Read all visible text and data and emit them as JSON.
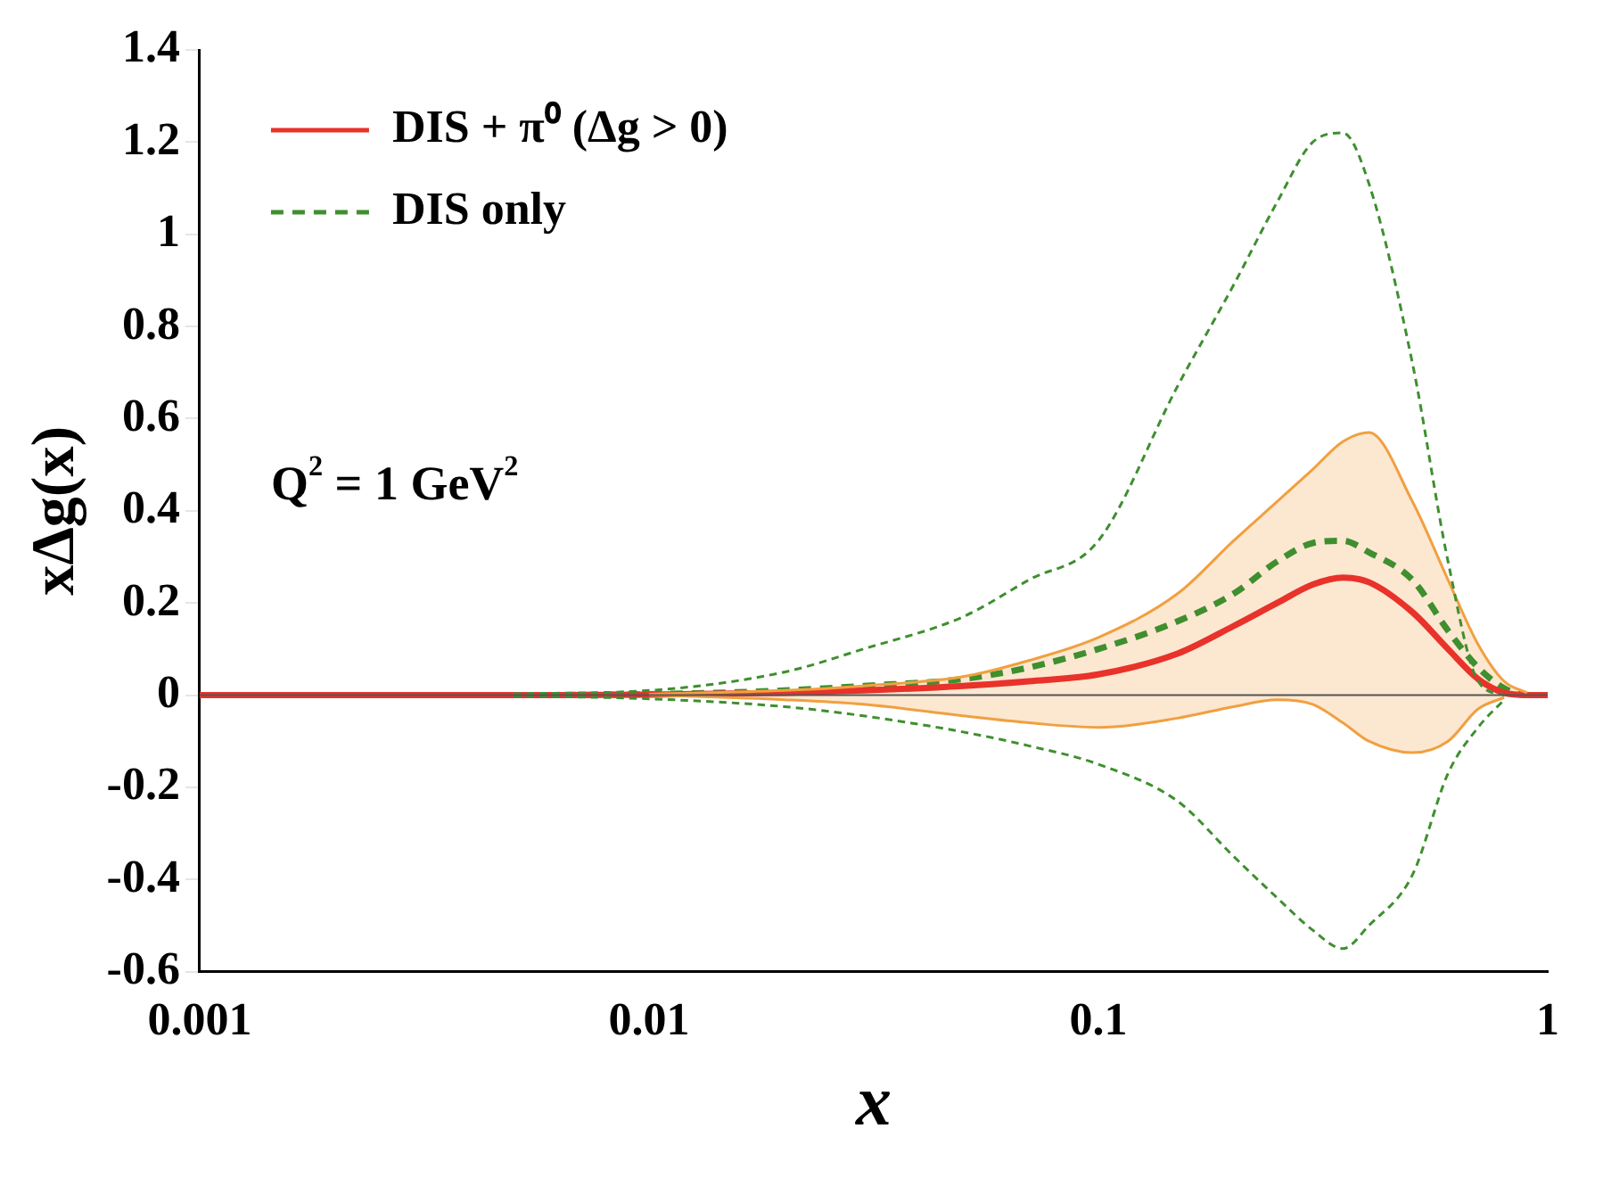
{
  "chart_data": {
    "type": "line",
    "xlabel": "x",
    "ylabel": "xΔg(x)",
    "annotations": [
      "Q$^{2}$ = 1 GeV$^{2}$"
    ],
    "x": [
      0.001,
      0.002,
      0.005,
      0.01,
      0.02,
      0.03,
      0.05,
      0.07,
      0.1,
      0.15,
      0.2,
      0.25,
      0.3,
      0.35,
      0.4,
      0.5,
      0.6,
      0.7,
      0.8,
      0.9,
      1
    ],
    "series": [
      {
        "name": "DIS + π⁰ (Δg > 0)",
        "color": "#e8322a",
        "line_style": "solid",
        "values": [
          0,
          0,
          0,
          0.001,
          0.005,
          0.01,
          0.02,
          0.03,
          0.045,
          0.09,
          0.15,
          0.2,
          0.24,
          0.255,
          0.245,
          0.18,
          0.1,
          0.035,
          0.005,
          0,
          0
        ],
        "upper": [
          0,
          0,
          0,
          0.002,
          0.01,
          0.02,
          0.04,
          0.075,
          0.125,
          0.22,
          0.335,
          0.42,
          0.49,
          0.55,
          0.57,
          0.42,
          0.25,
          0.11,
          0.03,
          0.005,
          0
        ],
        "lower": [
          0,
          0,
          0,
          0,
          -0.01,
          -0.02,
          -0.045,
          -0.06,
          -0.07,
          -0.05,
          -0.025,
          -0.01,
          -0.02,
          -0.06,
          -0.1,
          -0.125,
          -0.1,
          -0.03,
          -0.005,
          0,
          0
        ]
      },
      {
        "name": "DIS only",
        "color": "#3f8f2f",
        "line_style": "dashed",
        "values": [
          0,
          0,
          0,
          0.002,
          0.01,
          0.02,
          0.035,
          0.06,
          0.1,
          0.16,
          0.22,
          0.29,
          0.33,
          0.335,
          0.31,
          0.25,
          0.14,
          0.06,
          0.015,
          0,
          0
        ]
      },
      {
        "color": "#3f8f2f",
        "line_style": "dashed",
        "values": [
          null,
          null,
          0.003,
          0.01,
          0.05,
          0.1,
          0.17,
          0.25,
          0.335,
          0.67,
          0.89,
          1.07,
          1.2,
          1.22,
          1.11,
          0.72,
          0.29,
          0.03,
          0,
          null,
          null
        ]
      },
      {
        "color": "#3f8f2f",
        "line_style": "dashed",
        "values": [
          null,
          null,
          -0.002,
          -0.008,
          -0.025,
          -0.045,
          -0.08,
          -0.11,
          -0.15,
          -0.23,
          -0.35,
          -0.44,
          -0.51,
          -0.55,
          -0.5,
          -0.39,
          -0.17,
          -0.07,
          -0.01,
          null,
          null
        ]
      },
      {
        "color": "#f0a040",
        "line_style": "solid",
        "values": [
          null,
          null,
          null,
          0.002,
          0.01,
          0.02,
          0.04,
          0.075,
          0.125,
          0.22,
          0.335,
          0.42,
          0.49,
          0.55,
          0.57,
          0.42,
          0.25,
          0.11,
          0.03,
          0.005,
          null
        ]
      },
      {
        "color": "#f0a040",
        "line_style": "solid",
        "values": [
          null,
          null,
          null,
          0,
          -0.01,
          -0.02,
          -0.045,
          -0.06,
          -0.07,
          -0.05,
          -0.025,
          -0.01,
          -0.02,
          -0.06,
          -0.1,
          -0.125,
          -0.1,
          -0.03,
          -0.005,
          null,
          null
        ]
      }
    ],
    "log": "x",
    "grid": false,
    "legend": "top left",
    "marker": "none",
    "xlim": [
      0.001,
      1
    ],
    "xticks": [
      0.001,
      0.01,
      0.1,
      1
    ],
    "ylim": [
      -0.6,
      1.4
    ],
    "yticks": [
      -0.6,
      -0.4,
      -0.2,
      0,
      0.2,
      0.4,
      0.6,
      0.8,
      1,
      1.2,
      1.4
    ],
    "ref_lines": [
      {
        "axis": "y",
        "value": 0,
        "color": "#555555"
      }
    ]
  }
}
